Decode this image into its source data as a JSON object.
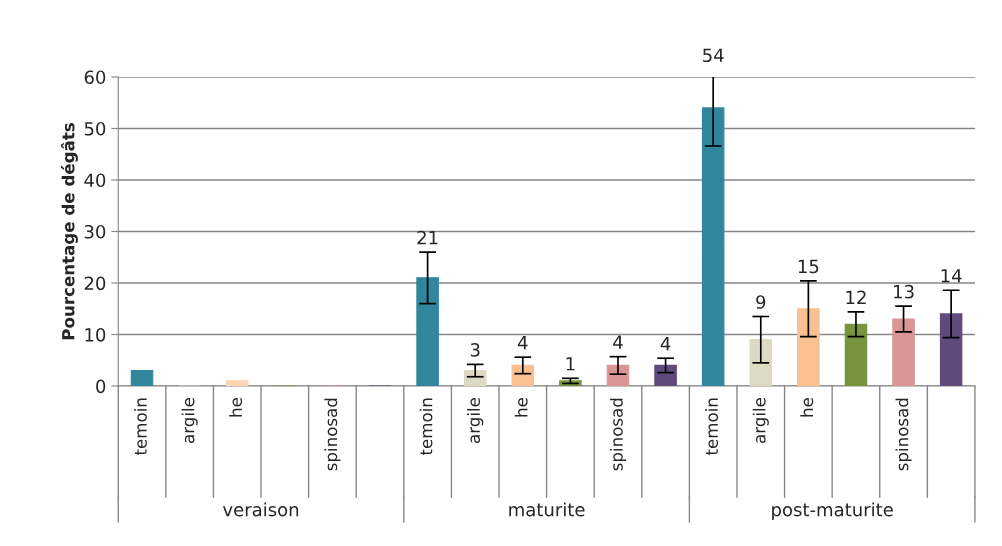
{
  "chart_data": {
    "type": "bar",
    "ylabel": "Pourcentage de dégâts",
    "categories": [
      "temoin",
      "argile",
      "he",
      null,
      "spinosad",
      null,
      "temoin",
      "argile",
      "he",
      null,
      "spinosad",
      null,
      "temoin",
      "argile",
      "he",
      null,
      "spinosad",
      null
    ],
    "values": [
      3,
      0,
      1,
      0,
      0,
      0,
      21,
      3,
      4,
      1,
      4,
      4,
      54,
      9,
      15,
      12,
      13,
      14
    ],
    "colors": [
      "#31859c",
      "#ddd9c3",
      "#fcd5b4",
      "#77933c",
      "#d99694",
      "#604a7b",
      "#31859c",
      "#ddd9c3",
      "#fac090",
      "#77933c",
      "#d99694",
      "#604a7b",
      "#31859c",
      "#ddd9c3",
      "#fac090",
      "#77933c",
      "#d99694",
      "#604a7b"
    ],
    "errors": [
      null,
      null,
      null,
      null,
      null,
      null,
      5,
      1.2,
      1.6,
      0.5,
      1.7,
      1.4,
      7.4,
      4.5,
      5.4,
      2.4,
      2.5,
      4.6
    ],
    "value_labels": [
      null,
      null,
      null,
      null,
      null,
      null,
      "21",
      "3",
      "4",
      "1",
      "4",
      "4",
      "54",
      "9",
      "15",
      "12",
      "13",
      "14"
    ],
    "annotations": [
      "veraison",
      "maturite",
      "post-maturite"
    ],
    "ylim": [
      0,
      60
    ],
    "yticks": [
      0,
      10,
      20,
      30,
      40,
      50,
      60
    ],
    "grid": "y",
    "legend": false
  }
}
